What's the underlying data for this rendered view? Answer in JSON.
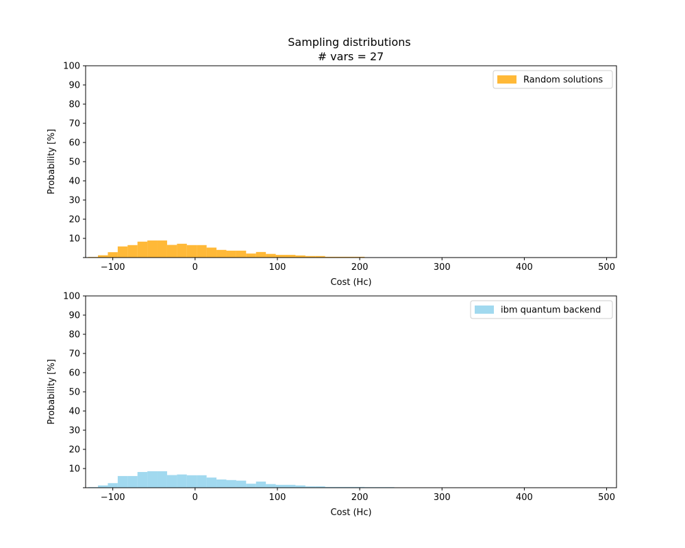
{
  "figure": {
    "title": "Sampling distributions",
    "subtitle": "# vars = 27"
  },
  "chart_data": [
    {
      "type": "bar",
      "series": [
        {
          "name": "Random solutions",
          "color": "#ffa500",
          "bin_edges": [
            -130,
            -118,
            -106,
            -94,
            -82,
            -70,
            -58,
            -46,
            -34,
            -22,
            -10,
            2,
            14,
            26,
            38,
            50,
            62,
            74,
            86,
            98,
            110,
            122,
            134,
            146,
            158,
            170,
            182,
            194,
            206,
            218
          ],
          "values": [
            0.3,
            1.2,
            2.8,
            5.8,
            6.5,
            8.3,
            8.9,
            8.9,
            6.6,
            7.2,
            6.5,
            6.5,
            5.2,
            4.0,
            3.6,
            3.6,
            2.1,
            2.9,
            1.9,
            1.4,
            1.4,
            1.1,
            0.8,
            0.8,
            0.4,
            0.4,
            0.4,
            0.4,
            0.0
          ]
        }
      ],
      "xlabel": "Cost (Hc)",
      "ylabel": "Probability [%]",
      "xlim": [
        -133,
        512
      ],
      "ylim": [
        0,
        100
      ],
      "xticks": [
        -100,
        0,
        100,
        200,
        300,
        400,
        500
      ],
      "xtick_labels": [
        "−100",
        "0",
        "100",
        "200",
        "300",
        "400",
        "500"
      ],
      "yticks": [
        10,
        20,
        30,
        40,
        50,
        60,
        70,
        80,
        90,
        100
      ],
      "ytick_labels": [
        "10",
        "20",
        "30",
        "40",
        "50",
        "60",
        "70",
        "80",
        "90",
        "100"
      ],
      "grid": false,
      "legend": "top-right"
    },
    {
      "type": "bar",
      "series": [
        {
          "name": "ibm quantum backend",
          "color": "#87ceeb",
          "bin_edges": [
            -130,
            -118,
            -106,
            -94,
            -82,
            -70,
            -58,
            -46,
            -34,
            -22,
            -10,
            2,
            14,
            26,
            38,
            50,
            62,
            74,
            86,
            98,
            110,
            122,
            134,
            146,
            158,
            170,
            182,
            194,
            206,
            218,
            230,
            242,
            254
          ],
          "values": [
            0.3,
            1.2,
            2.4,
            6.1,
            6.1,
            8.2,
            8.6,
            8.6,
            6.6,
            6.9,
            6.5,
            6.5,
            5.3,
            4.3,
            4.0,
            3.7,
            2.1,
            3.2,
            1.9,
            1.5,
            1.5,
            1.2,
            0.7,
            0.7,
            0.4,
            0.4,
            0.4,
            0.4,
            0.3,
            0.3,
            0.3,
            0.0
          ]
        }
      ],
      "xlabel": "Cost (Hc)",
      "ylabel": "Probability [%]",
      "xlim": [
        -133,
        512
      ],
      "ylim": [
        0,
        100
      ],
      "xticks": [
        -100,
        0,
        100,
        200,
        300,
        400,
        500
      ],
      "xtick_labels": [
        "−100",
        "0",
        "100",
        "200",
        "300",
        "400",
        "500"
      ],
      "yticks": [
        10,
        20,
        30,
        40,
        50,
        60,
        70,
        80,
        90,
        100
      ],
      "ytick_labels": [
        "10",
        "20",
        "30",
        "40",
        "50",
        "60",
        "70",
        "80",
        "90",
        "100"
      ],
      "grid": false,
      "legend": "top-right"
    }
  ]
}
